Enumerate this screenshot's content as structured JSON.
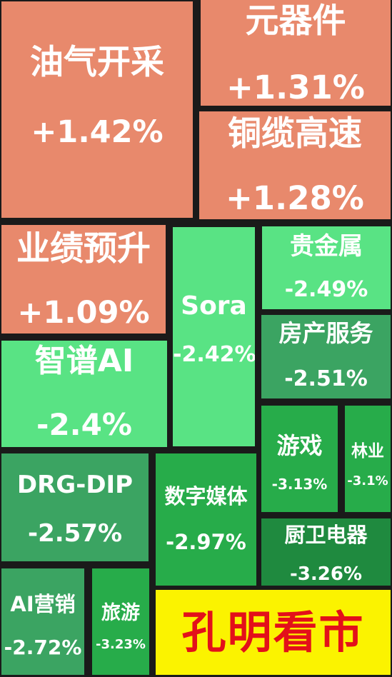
{
  "chart_data": {
    "type": "treemap",
    "unit": "%",
    "items": [
      {
        "name": "油气开采",
        "value": 1.42,
        "label": "+1.42%"
      },
      {
        "name": "元器件",
        "value": 1.31,
        "label": "+1.31%"
      },
      {
        "name": "铜缆高速",
        "value": 1.28,
        "label": "+1.28%"
      },
      {
        "name": "业绩预升",
        "value": 1.09,
        "label": "+1.09%"
      },
      {
        "name": "智谱AI",
        "value": -2.4,
        "label": "-2.4%"
      },
      {
        "name": "Sora",
        "value": -2.42,
        "label": "-2.42%"
      },
      {
        "name": "贵金属",
        "value": -2.49,
        "label": "-2.49%"
      },
      {
        "name": "房产服务",
        "value": -2.51,
        "label": "-2.51%"
      },
      {
        "name": "DRG-DIP",
        "value": -2.57,
        "label": "-2.57%"
      },
      {
        "name": "数字媒体",
        "value": -2.97,
        "label": "-2.97%"
      },
      {
        "name": "游戏",
        "value": -3.13,
        "label": "-3.13%"
      },
      {
        "name": "林业",
        "value": -3.1,
        "label": "-3.1%"
      },
      {
        "name": "厨卫电器",
        "value": -3.26,
        "label": "-3.26%"
      },
      {
        "name": "AI营销",
        "value": -2.72,
        "label": "-2.72%"
      },
      {
        "name": "旅游",
        "value": -3.23,
        "label": "-3.23%"
      }
    ],
    "colors": {
      "up": "#e8896c",
      "down_light": "#59e384",
      "down_mid": "#3ba462",
      "down_dark": "#1f8a3f"
    }
  },
  "banner": {
    "text": "孔明看市",
    "text_color": "#e3101a",
    "bg_color": "#fbf300"
  }
}
